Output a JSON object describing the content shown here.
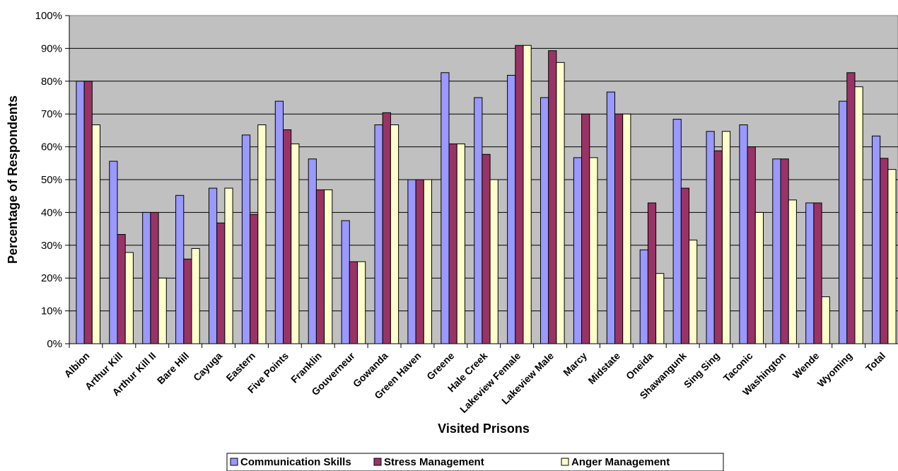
{
  "chart_data": {
    "type": "bar",
    "title": "",
    "xlabel": "Visited Prisons",
    "ylabel": "Percentage of Respondents",
    "ylim": [
      0,
      100
    ],
    "y_ticks": [
      "0%",
      "10%",
      "20%",
      "30%",
      "40%",
      "50%",
      "60%",
      "70%",
      "80%",
      "90%",
      "100%"
    ],
    "grid": true,
    "legend_position": "bottom",
    "categories": [
      "Albion",
      "Arthur Kill",
      "Arthur Kill II",
      "Bare Hill",
      "Cayuga",
      "Eastern",
      "Five Points",
      "Franklin",
      "Gouverneur",
      "Gowanda",
      "Green Haven",
      "Greene",
      "Hale Creek",
      "Lakeview Female",
      "Lakeview Male",
      "Marcy",
      "Midstate",
      "Oneida",
      "Shawangunk",
      "Sing Sing",
      "Taconic",
      "Washington",
      "Wende",
      "Wyoming",
      "Total"
    ],
    "series": [
      {
        "name": "Communication Skills",
        "color": "#9999FF",
        "values": [
          80,
          55.6,
          40,
          45.2,
          47.4,
          63.6,
          73.9,
          56.3,
          37.5,
          66.7,
          50,
          82.6,
          75,
          81.8,
          75,
          56.7,
          76.7,
          28.6,
          68.4,
          64.7,
          66.7,
          56.3,
          42.9,
          73.9,
          63.3
        ]
      },
      {
        "name": "Stress Management",
        "color": "#993366",
        "values": [
          80,
          33.3,
          40,
          25.8,
          36.8,
          39.4,
          65.2,
          46.9,
          25,
          70.4,
          50,
          60.9,
          57.7,
          90.9,
          89.3,
          70,
          70,
          42.9,
          47.4,
          58.8,
          60,
          56.3,
          42.9,
          82.6,
          56.5
        ]
      },
      {
        "name": "Anger Management",
        "color": "#FFFFCC",
        "values": [
          66.7,
          27.8,
          20,
          29,
          47.4,
          66.7,
          60.9,
          46.9,
          25,
          66.7,
          50,
          60.9,
          50,
          90.9,
          85.7,
          56.7,
          70,
          21.4,
          31.6,
          64.7,
          40,
          43.8,
          14.3,
          78.3,
          53.1
        ]
      }
    ]
  }
}
